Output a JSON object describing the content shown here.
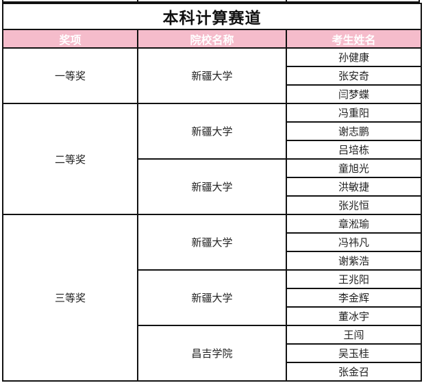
{
  "title": "本科计算赛道",
  "header": {
    "award": "奖项",
    "school": "院校名称",
    "name": "考生姓名"
  },
  "colors": {
    "header_bg": "#f5bccb",
    "header_text": "#ffffff",
    "border": "#111111"
  },
  "groups": [
    {
      "award": "一等奖",
      "schools": [
        {
          "school": "新疆大学",
          "names": [
            "孙健康",
            "张安奇",
            "闫梦蝶"
          ]
        }
      ]
    },
    {
      "award": "二等奖",
      "schools": [
        {
          "school": "新疆大学",
          "names": [
            "冯重阳",
            "谢志鹏",
            "吕培栋"
          ]
        },
        {
          "school": "新疆大学",
          "names": [
            "童旭光",
            "洪敏捷",
            "张兆恒"
          ]
        }
      ]
    },
    {
      "award": "三等奖",
      "schools": [
        {
          "school": "新疆大学",
          "names": [
            "章淞瑜",
            "冯祎凡",
            "谢紫浩"
          ]
        },
        {
          "school": "新疆大学",
          "names": [
            "王兆阳",
            "李金辉",
            "董冰宇"
          ]
        },
        {
          "school": "昌吉学院",
          "names": [
            "王闯",
            "吴玉桂",
            "张金召"
          ]
        }
      ]
    }
  ]
}
